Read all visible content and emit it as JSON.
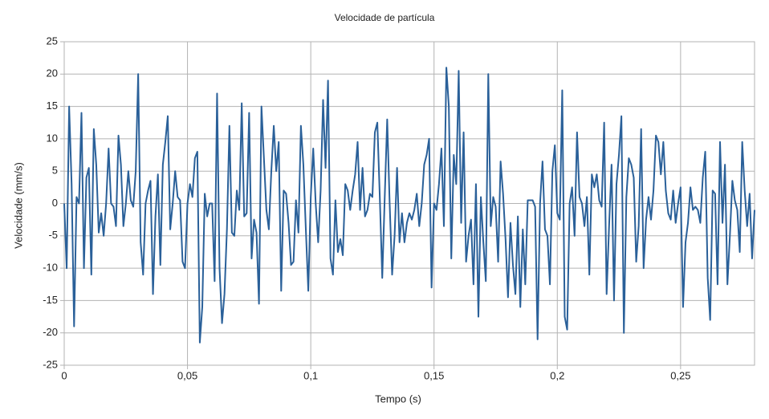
{
  "chart_data": {
    "type": "line",
    "title": "Velocidade de partícula",
    "x_label": "Tempo (s)",
    "y_label": "Velocidade (mm/s)",
    "xlim": [
      0,
      0.28
    ],
    "ylim": [
      -25,
      25
    ],
    "xticks": [
      0,
      {
        "value": 0.05,
        "label": "0,05"
      },
      {
        "value": 0.1,
        "label": "0,1"
      },
      {
        "value": 0.15,
        "label": "0,15"
      },
      {
        "value": 0.2,
        "label": "0,2"
      },
      {
        "value": 0.25,
        "label": "0,25"
      }
    ],
    "yticks": [
      -25,
      -20,
      -15,
      -10,
      -5,
      0,
      5,
      10,
      15,
      20,
      25
    ],
    "grid": true,
    "x": [
      0,
      0.001,
      0.002,
      0.003,
      0.004,
      0.005,
      0.006,
      0.007,
      0.008,
      0.009,
      0.01,
      0.011,
      0.012,
      0.013,
      0.014,
      0.015,
      0.016,
      0.017,
      0.018,
      0.019,
      0.02,
      0.021,
      0.022,
      0.023,
      0.024,
      0.025,
      0.026,
      0.027,
      0.028,
      0.029,
      0.03,
      0.031,
      0.032,
      0.033,
      0.034,
      0.035,
      0.036,
      0.037,
      0.038,
      0.039,
      0.04,
      0.041,
      0.042,
      0.043,
      0.044,
      0.045,
      0.046,
      0.047,
      0.048,
      0.049,
      0.05,
      0.051,
      0.052,
      0.053,
      0.054,
      0.055,
      0.056,
      0.057,
      0.058,
      0.059,
      0.06,
      0.061,
      0.062,
      0.063,
      0.064,
      0.065,
      0.066,
      0.067,
      0.068,
      0.069,
      0.07,
      0.071,
      0.072,
      0.073,
      0.074,
      0.075,
      0.076,
      0.077,
      0.078,
      0.079,
      0.08,
      0.081,
      0.082,
      0.083,
      0.084,
      0.085,
      0.086,
      0.087,
      0.088,
      0.089,
      0.09,
      0.091,
      0.092,
      0.093,
      0.094,
      0.095,
      0.096,
      0.097,
      0.098,
      0.099,
      0.1,
      0.101,
      0.102,
      0.103,
      0.104,
      0.105,
      0.106,
      0.107,
      0.108,
      0.109,
      0.11,
      0.111,
      0.112,
      0.113,
      0.114,
      0.115,
      0.116,
      0.117,
      0.118,
      0.119,
      0.12,
      0.121,
      0.122,
      0.123,
      0.124,
      0.125,
      0.126,
      0.127,
      0.128,
      0.129,
      0.13,
      0.131,
      0.132,
      0.133,
      0.134,
      0.135,
      0.136,
      0.137,
      0.138,
      0.139,
      0.14,
      0.141,
      0.142,
      0.143,
      0.144,
      0.145,
      0.146,
      0.147,
      0.148,
      0.149,
      0.15,
      0.151,
      0.152,
      0.153,
      0.154,
      0.155,
      0.156,
      0.157,
      0.158,
      0.159,
      0.16,
      0.161,
      0.162,
      0.163,
      0.164,
      0.165,
      0.166,
      0.167,
      0.168,
      0.169,
      0.17,
      0.171,
      0.172,
      0.173,
      0.174,
      0.175,
      0.176,
      0.177,
      0.178,
      0.179,
      0.18,
      0.181,
      0.182,
      0.183,
      0.184,
      0.185,
      0.186,
      0.187,
      0.188,
      0.189,
      0.19,
      0.191,
      0.192,
      0.193,
      0.194,
      0.195,
      0.196,
      0.197,
      0.198,
      0.199,
      0.2,
      0.201,
      0.202,
      0.203,
      0.204,
      0.205,
      0.206,
      0.207,
      0.208,
      0.209,
      0.21,
      0.211,
      0.212,
      0.213,
      0.214,
      0.215,
      0.216,
      0.217,
      0.218,
      0.219,
      0.22,
      0.221,
      0.222,
      0.223,
      0.224,
      0.225,
      0.226,
      0.227,
      0.228,
      0.229,
      0.23,
      0.231,
      0.232,
      0.233,
      0.234,
      0.235,
      0.236,
      0.237,
      0.238,
      0.239,
      0.24,
      0.241,
      0.242,
      0.243,
      0.244,
      0.245,
      0.246,
      0.247,
      0.248,
      0.249,
      0.25,
      0.251,
      0.252,
      0.253,
      0.254,
      0.255,
      0.256,
      0.257,
      0.258,
      0.259,
      0.26,
      0.261,
      0.262,
      0.263,
      0.264,
      0.265,
      0.266,
      0.267,
      0.268,
      0.269,
      0.27,
      0.271,
      0.272,
      0.273,
      0.274,
      0.275,
      0.276,
      0.277,
      0.278,
      0.279,
      0.28
    ],
    "series": [
      {
        "color": "#2a6099",
        "values": [
          0,
          -10,
          15,
          3,
          -19,
          1,
          0,
          14,
          -10,
          4,
          5.5,
          -11,
          11.5,
          6,
          -4.5,
          -1.5,
          -5,
          0,
          8.5,
          0,
          -0.5,
          -3.5,
          10.5,
          6,
          -3.5,
          0,
          5,
          0.5,
          -0.5,
          5,
          20,
          -6,
          -11,
          0,
          2,
          3.5,
          -14,
          -2,
          4.5,
          -9.5,
          6,
          9.5,
          13.5,
          -4,
          0,
          5,
          1,
          0.5,
          -9,
          -10,
          0,
          3,
          1,
          7,
          8,
          -21.5,
          -16,
          1.5,
          -2,
          0,
          0,
          -12,
          17,
          -10,
          -18.5,
          -14,
          -4,
          12,
          -4.5,
          -5,
          2,
          -1,
          15.5,
          -2,
          -1.5,
          14,
          -8.5,
          -2.5,
          -4.5,
          -15.5,
          15,
          7,
          -1,
          -4,
          5,
          12,
          5,
          9.5,
          -13.5,
          2,
          1.5,
          -3,
          -9.5,
          -9,
          0.5,
          -4.5,
          12,
          6,
          -4,
          -13.5,
          1,
          8.5,
          0,
          -6,
          2,
          16,
          5.5,
          19,
          -8.5,
          -11,
          0.5,
          -7.5,
          -5.5,
          -8,
          3,
          2,
          -1,
          2,
          4.5,
          9.5,
          -1,
          5.5,
          -2,
          -1,
          1.5,
          1,
          11,
          12.5,
          1,
          -11.5,
          1,
          13,
          0,
          -11,
          -5,
          5.5,
          -6,
          -1.5,
          -6,
          -3,
          -1.5,
          -2.5,
          -1,
          1.5,
          -3.5,
          0,
          6,
          7.5,
          10,
          -13,
          0,
          -1,
          3,
          8.5,
          -3.5,
          21,
          15,
          -8.5,
          7.5,
          3,
          20.5,
          -3,
          11,
          -9,
          -5,
          -2.5,
          -12.5,
          3,
          -17.5,
          1,
          -6,
          -12,
          20,
          -3.5,
          1,
          -0.5,
          -9,
          6.5,
          1.5,
          -5.5,
          -14.5,
          -3,
          -9.5,
          -14,
          -2,
          -16,
          -4,
          -12.5,
          0.5,
          0.5,
          0.5,
          -0.5,
          -21,
          0,
          6.5,
          -4,
          -5,
          -12.5,
          5,
          9,
          -1.5,
          -2.5,
          17.5,
          -17.5,
          -19.5,
          0,
          2.5,
          -5,
          11,
          1,
          0,
          -3.5,
          1,
          -11,
          4.5,
          2.5,
          4.5,
          0.5,
          -0.5,
          12.5,
          -14,
          -3.5,
          6,
          -15,
          3,
          7.5,
          13.5,
          -20,
          1,
          7,
          6,
          4,
          -9,
          -3.5,
          11.5,
          -10,
          -2.5,
          1,
          -2.5,
          2,
          10.5,
          9.5,
          4.5,
          9.5,
          2,
          -1.5,
          -2.5,
          2,
          -3,
          0,
          2.5,
          -16,
          -6,
          -3,
          2.5,
          -1,
          -0.5,
          -1,
          -3,
          4,
          8,
          -11.5,
          -18,
          2,
          1.5,
          -12.5,
          9.5,
          -3,
          6,
          -12.5,
          -5,
          3.5,
          0.5,
          -1,
          -7.5,
          9.5,
          2,
          -3.5,
          1.5,
          -8.5,
          -1
        ]
      }
    ]
  }
}
